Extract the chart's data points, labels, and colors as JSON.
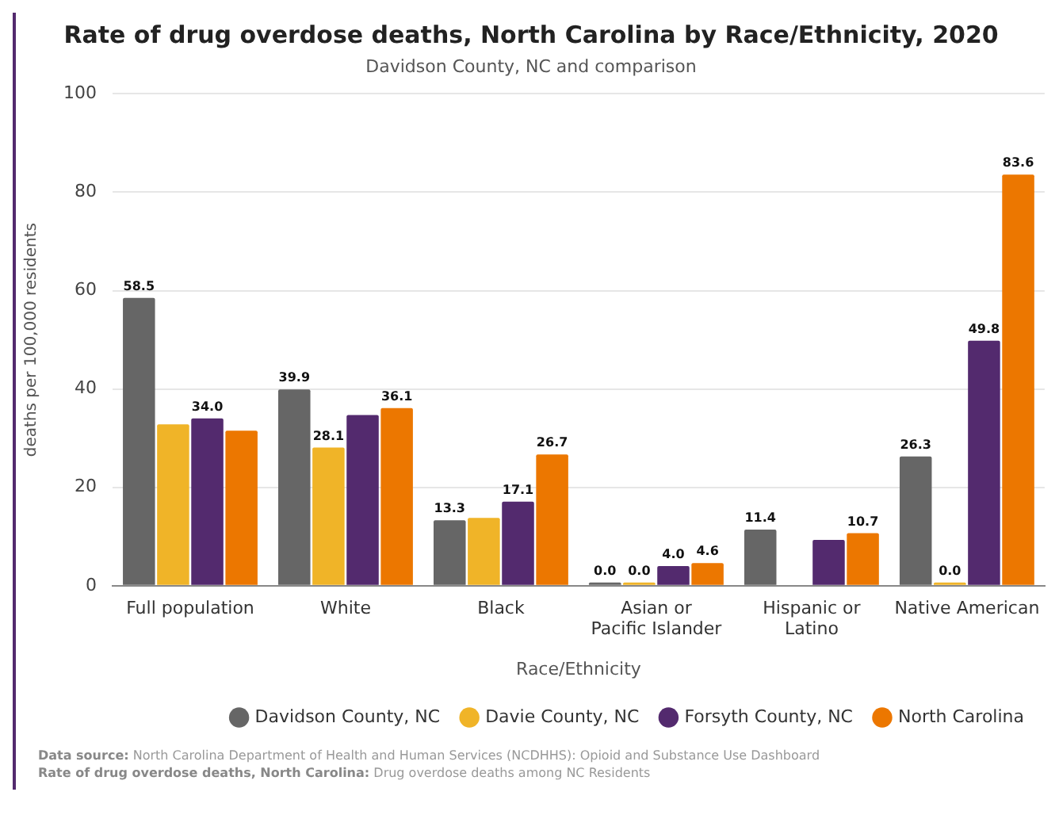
{
  "chart_data": {
    "type": "bar",
    "title": "Rate of drug overdose deaths, North Carolina by Race/Ethnicity, 2020",
    "subtitle": "Davidson County, NC and comparison",
    "xlabel": "Race/Ethnicity",
    "ylabel": "deaths per 100,000 residents",
    "categories": [
      "Full population",
      "White",
      "Black",
      "Asian or Pacific Islander",
      "Hispanic or Latino",
      "Native American"
    ],
    "series": [
      {
        "name": "Davidson County, NC",
        "color": "#666666",
        "values": [
          58.5,
          39.9,
          13.3,
          0.0,
          11.4,
          26.3
        ],
        "value_labels": [
          "58.5",
          "39.9",
          "13.3",
          "0.0",
          "11.4",
          "26.3"
        ]
      },
      {
        "name": "Davie County, NC",
        "color": "#f0b428",
        "values": [
          32.8,
          28.1,
          13.8,
          0.0,
          null,
          0.0
        ],
        "value_labels": [
          null,
          "28.1",
          null,
          "0.0",
          null,
          "0.0"
        ]
      },
      {
        "name": "Forsyth County, NC",
        "color": "#532a6e",
        "values": [
          34.0,
          34.7,
          17.1,
          4.0,
          9.3,
          49.8
        ],
        "value_labels": [
          "34.0",
          null,
          "17.1",
          "4.0",
          null,
          "49.8"
        ]
      },
      {
        "name": "North Carolina",
        "color": "#ec7700",
        "values": [
          31.5,
          36.1,
          26.7,
          4.6,
          10.7,
          83.6
        ],
        "value_labels": [
          null,
          "36.1",
          "26.7",
          "4.6",
          "10.7",
          "83.6"
        ]
      }
    ],
    "ylim": [
      0,
      100
    ],
    "yticks": [
      0,
      20,
      40,
      60,
      80,
      100
    ],
    "grid": "y",
    "legend": "bottom right",
    "annotations": [
      "Data source: North Carolina Department of Health and Human Services (NCDHHS): Opioid and Substance Use Dashboard",
      "Rate of drug overdose deaths, North Carolina: Drug overdose deaths among NC Residents"
    ]
  }
}
